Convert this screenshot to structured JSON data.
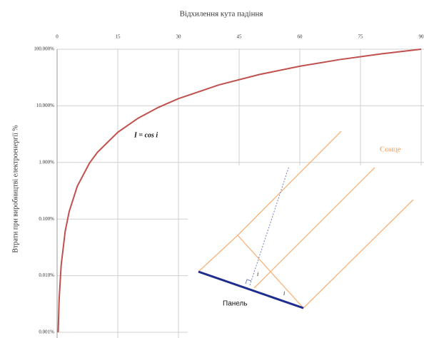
{
  "chart_data": {
    "type": "line",
    "title": "Відхилення кута падіння",
    "y_label": "Втрати при виробництві електроенергії  %",
    "x": [
      0.26,
      0.5,
      1,
      2,
      3,
      5,
      8,
      10,
      15,
      20,
      25,
      30,
      40,
      50,
      60,
      70,
      80,
      90
    ],
    "series": [
      {
        "name": "I = cos i",
        "color": "#c0504d",
        "values": [
          0.001,
          0.0038,
          0.0152,
          0.0609,
          0.137,
          0.381,
          0.973,
          1.519,
          3.407,
          6.031,
          9.369,
          13.397,
          23.396,
          35.721,
          50,
          65.798,
          82.635,
          100
        ]
      }
    ],
    "xlim": [
      0,
      90
    ],
    "xticks": [
      0,
      15,
      30,
      45,
      60,
      75,
      90
    ],
    "ylim": [
      0.001,
      100
    ],
    "log_y": true,
    "yticks": [
      {
        "value": 100,
        "label": "100.000%"
      },
      {
        "value": 10,
        "label": "10.000%"
      },
      {
        "value": 1,
        "label": "1.000%"
      },
      {
        "value": 0.1,
        "label": "0.100%"
      },
      {
        "value": 0.01,
        "label": "0.010%"
      },
      {
        "value": 0.001,
        "label": "0.001%"
      }
    ],
    "grid": true,
    "diagram": {
      "sun_label": "Сонце",
      "panel_label": "Панель",
      "angle_label": "i"
    }
  }
}
